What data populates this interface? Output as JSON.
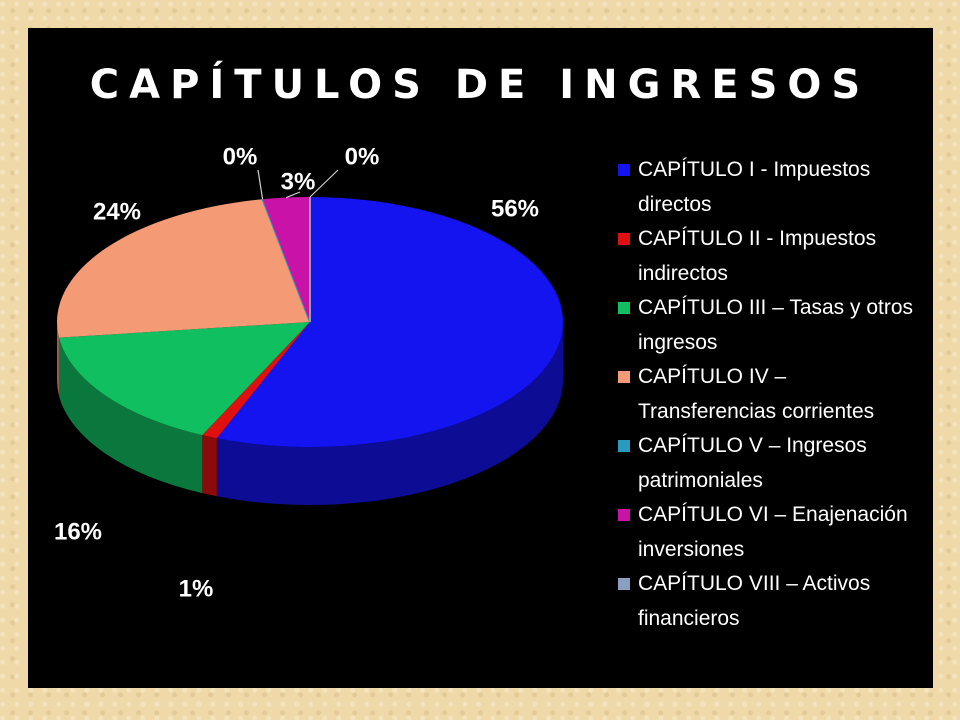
{
  "chart_data": {
    "type": "pie",
    "title": "CAPÍTULOS DE INGRESOS",
    "legend_placement": "right",
    "slices": [
      {
        "label": "CAPÍTULO I  -  Impuestos directos",
        "value": 56,
        "display": "56%",
        "color": "#1414f0"
      },
      {
        "label": "CAPÍTULO II  - Impuestos indirectos",
        "value": 1,
        "display": "1%",
        "color": "#e01010"
      },
      {
        "label": "CAPÍTULO III – Tasas  y otros ingresos",
        "value": 16,
        "display": "16%",
        "color": "#10c060"
      },
      {
        "label": "CAPÍTULO IV – Transferencias corrientes",
        "value": 24,
        "display": "24%",
        "color": "#f49a74"
      },
      {
        "label": "CAPÍTULO V – Ingresos patrimoniales",
        "value": 0,
        "display": "0%",
        "color": "#2a9ac0"
      },
      {
        "label": "CAPÍTULO VI – Enajenación inversiones",
        "value": 3,
        "display": "3%",
        "color": "#c812a8"
      },
      {
        "label": "CAPÍTULO VIII – Activos financieros",
        "value": 0,
        "display": "0%",
        "color": "#8aa0c0"
      }
    ]
  }
}
